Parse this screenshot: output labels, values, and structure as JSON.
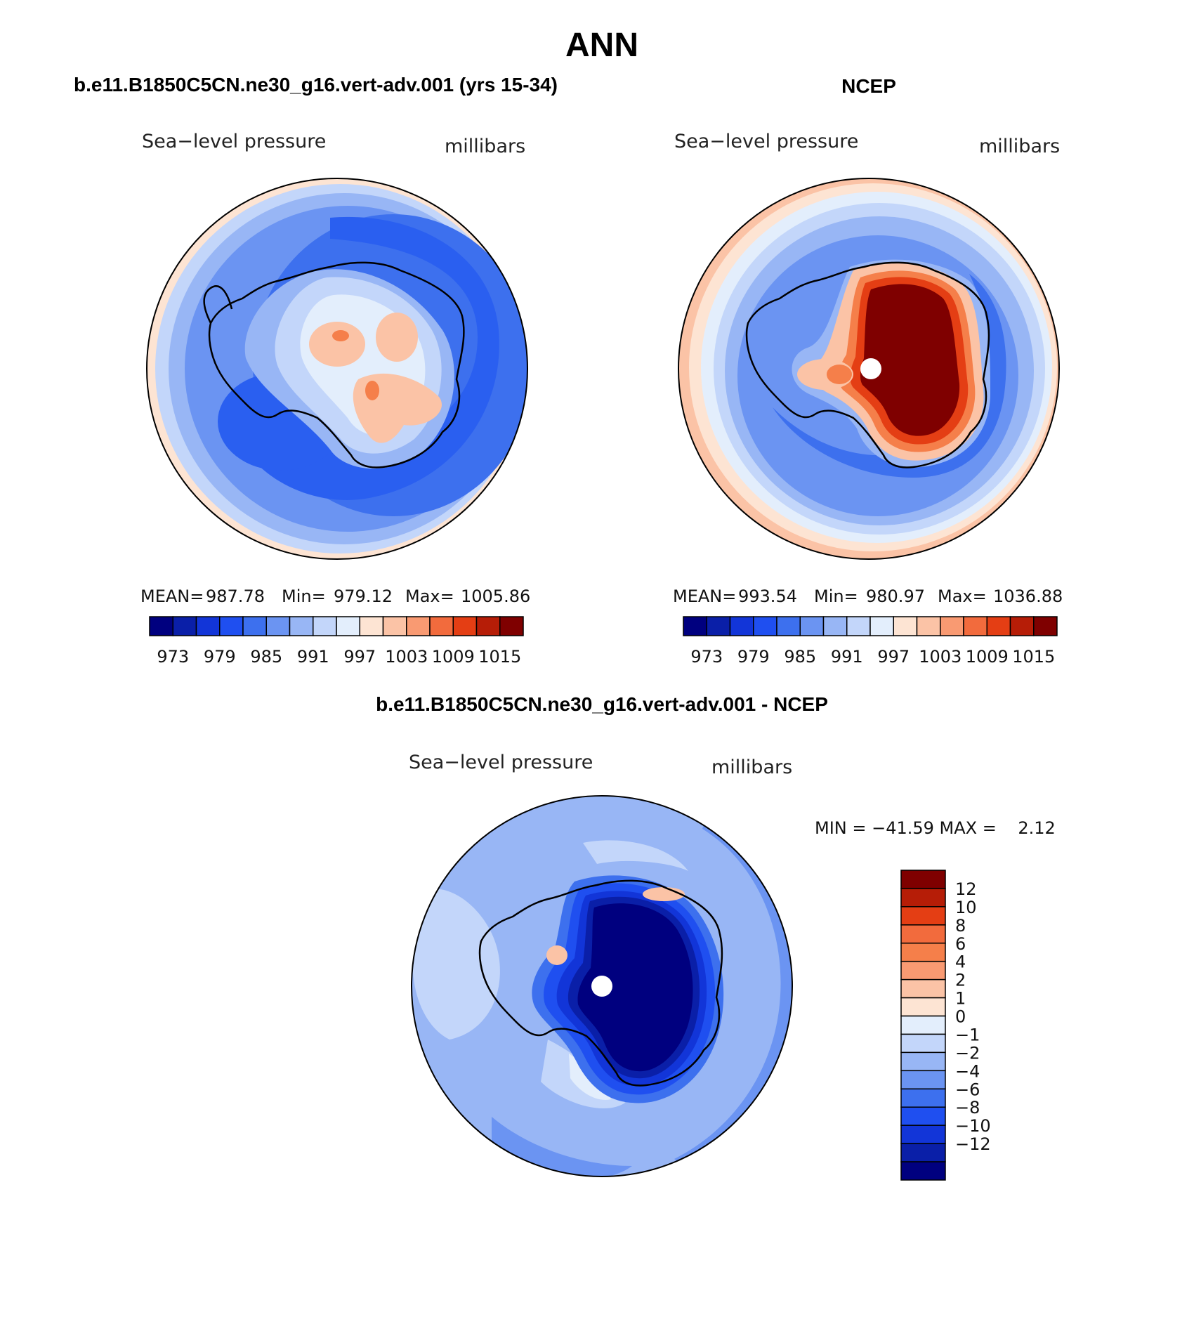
{
  "chart_data": [
    {
      "type": "heatmap",
      "projection": "south-polar-stereographic",
      "figure_title": "ANN",
      "panel_title": "b.e11.B1850C5CN.ne30_g16.vert-adv.001 (yrs 15-34)",
      "field_label": "Sea−level pressure",
      "units_label": "millibars",
      "stats": {
        "mean_label": "MEAN=",
        "mean": "987.78",
        "min_label": "Min=",
        "min": "979.12",
        "max_label": "Max=",
        "max": "1005.86"
      },
      "colorbar": {
        "orientation": "horizontal",
        "levels": [
          973,
          976,
          979,
          982,
          985,
          988,
          991,
          994,
          997,
          1000,
          1003,
          1006,
          1009,
          1012,
          1015
        ],
        "tick_labels": [
          "973",
          "979",
          "985",
          "991",
          "997",
          "1003",
          "1009",
          "1015"
        ],
        "colors": [
          "#00007f",
          "#0a1fa8",
          "#1235d8",
          "#1f4ff0",
          "#3d70ee",
          "#6b94f2",
          "#98b6f5",
          "#c3d6fa",
          "#e3eefc",
          "#fde4d3",
          "#fbc3a6",
          "#f99a72",
          "#f26b3d",
          "#e43e14",
          "#b61d07",
          "#7f0000"
        ]
      }
    },
    {
      "type": "heatmap",
      "projection": "south-polar-stereographic",
      "panel_title": "NCEP",
      "field_label": "Sea−level pressure",
      "units_label": "millibars",
      "stats": {
        "mean_label": "MEAN=",
        "mean": "993.54",
        "min_label": "Min=",
        "min": "980.97",
        "max_label": "Max=",
        "max": "1036.88"
      },
      "colorbar": {
        "orientation": "horizontal",
        "levels": [
          973,
          976,
          979,
          982,
          985,
          988,
          991,
          994,
          997,
          1000,
          1003,
          1006,
          1009,
          1012,
          1015
        ],
        "tick_labels": [
          "973",
          "979",
          "985",
          "991",
          "997",
          "1003",
          "1009",
          "1015"
        ],
        "colors": [
          "#00007f",
          "#0a1fa8",
          "#1235d8",
          "#1f4ff0",
          "#3d70ee",
          "#6b94f2",
          "#98b6f5",
          "#c3d6fa",
          "#e3eefc",
          "#fde4d3",
          "#fbc3a6",
          "#f99a72",
          "#f26b3d",
          "#e43e14",
          "#b61d07",
          "#7f0000"
        ]
      }
    },
    {
      "type": "heatmap",
      "projection": "south-polar-stereographic",
      "panel_title": "b.e11.B1850C5CN.ne30_g16.vert-adv.001 - NCEP",
      "field_label": "Sea−level pressure",
      "units_label": "millibars",
      "minmax_text": "MIN = −41.59 MAX =    2.12",
      "stats": {
        "min": -41.59,
        "max": 2.12
      },
      "colorbar": {
        "orientation": "vertical",
        "tick_labels": [
          "12",
          "10",
          "8",
          "6",
          "4",
          "2",
          "1",
          "0",
          "−1",
          "−2",
          "−4",
          "−6",
          "−8",
          "−10",
          "−12"
        ],
        "colors": [
          "#7f0000",
          "#b61d07",
          "#e43e14",
          "#f26b3d",
          "#f57f4a",
          "#f99a72",
          "#fbc3a6",
          "#fde4d3",
          "#e3eefc",
          "#c3d6fa",
          "#98b6f5",
          "#6b94f2",
          "#3d70ee",
          "#1f4ff0",
          "#1235d8",
          "#0a1fa8",
          "#00007f"
        ]
      }
    }
  ]
}
